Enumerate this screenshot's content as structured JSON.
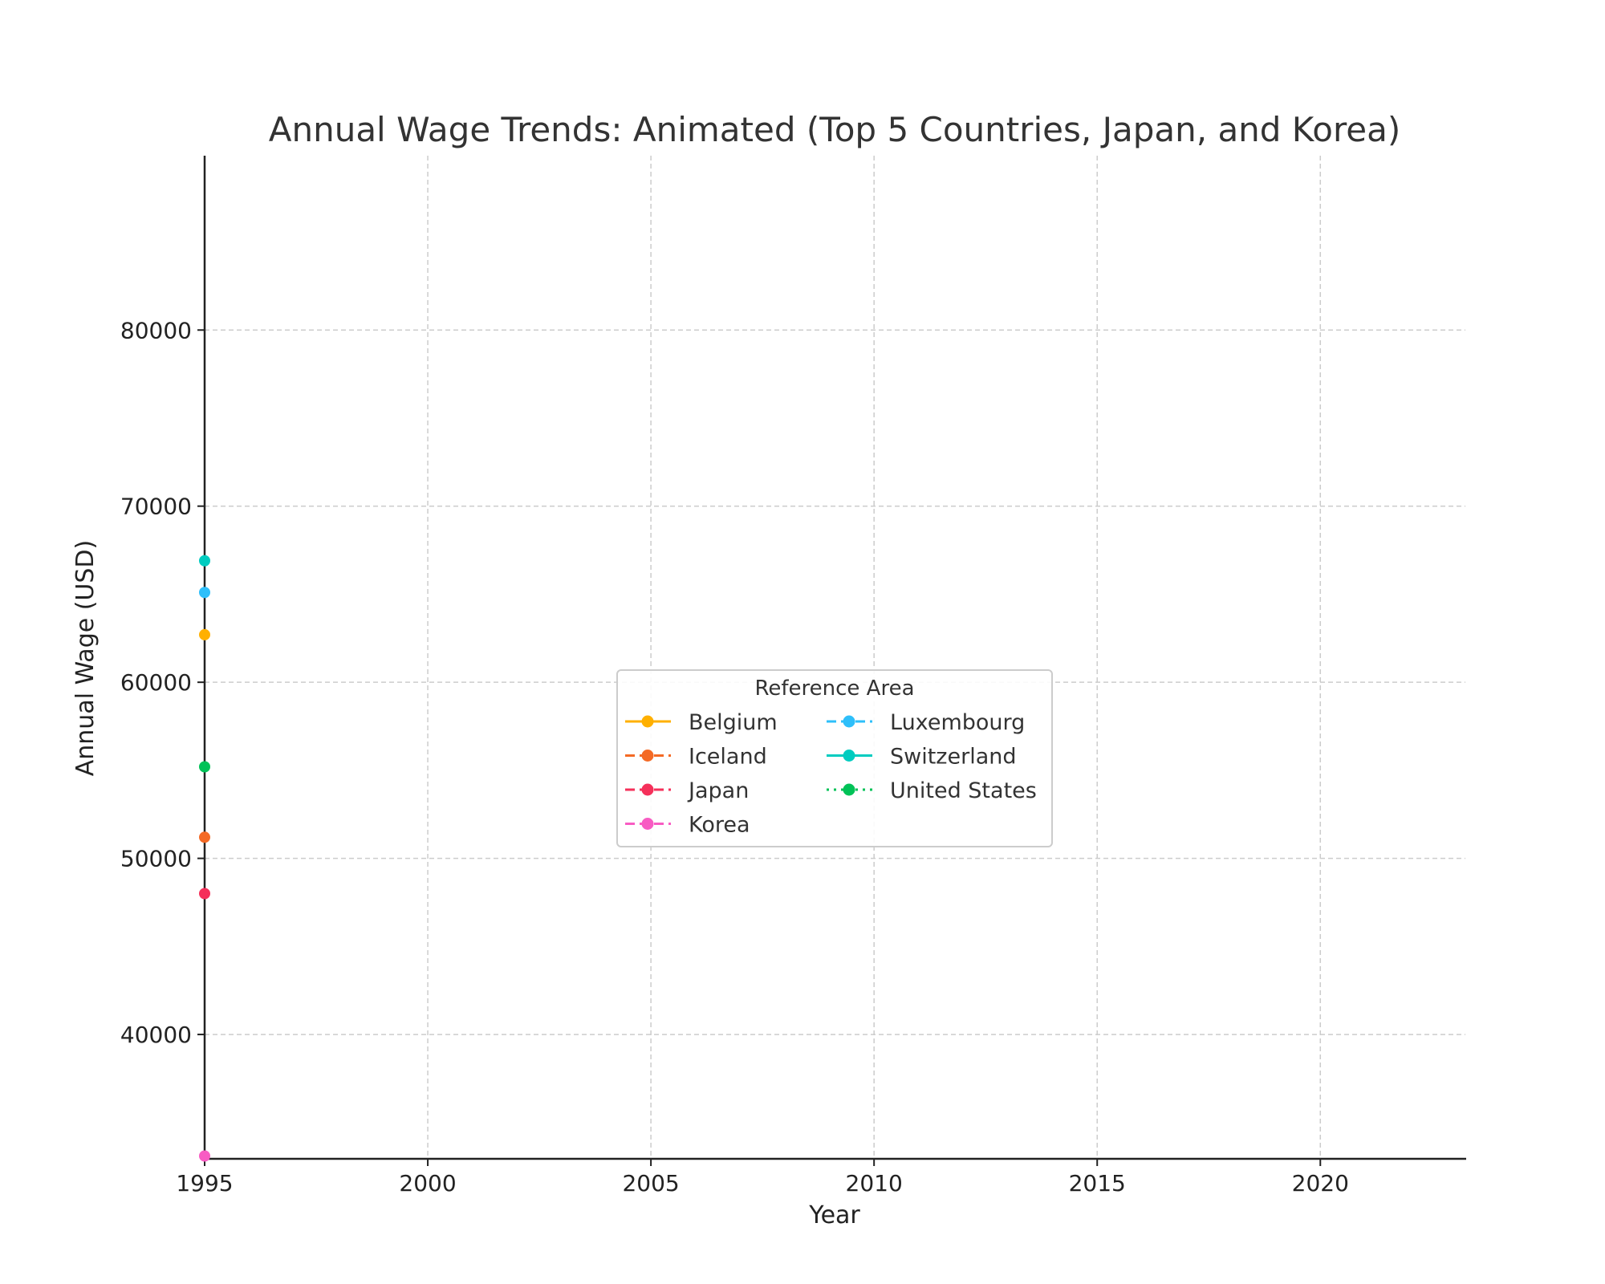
{
  "chart_data": {
    "type": "line",
    "title": "Annual Wage Trends: Animated (Top 5 Countries, Japan, and Korea)",
    "xlabel": "Year",
    "ylabel": "Annual Wage (USD)",
    "xlim": [
      1995,
      2023.25
    ],
    "ylim": [
      32940,
      89900
    ],
    "xticks": [
      1995,
      2000,
      2005,
      2010,
      2015,
      2020
    ],
    "yticks": [
      40000,
      50000,
      60000,
      70000,
      80000
    ],
    "grid": true,
    "legend": {
      "title": "Reference Area",
      "placement": "center-right",
      "columns": 2
    },
    "series": [
      {
        "name": "Belgium",
        "color": "#FFB000",
        "dash": "solid",
        "x": [
          1995
        ],
        "y": [
          62700
        ]
      },
      {
        "name": "Iceland",
        "color": "#F46A25",
        "dash": "dashed",
        "x": [
          1995
        ],
        "y": [
          51200
        ]
      },
      {
        "name": "Japan",
        "color": "#F5305A",
        "dash": "dashed",
        "x": [
          1995
        ],
        "y": [
          48000
        ]
      },
      {
        "name": "Korea",
        "color": "#F85CC3",
        "dash": "dashed",
        "x": [
          1995
        ],
        "y": [
          33100
        ]
      },
      {
        "name": "Luxembourg",
        "color": "#2EBFFA",
        "dash": "dashed",
        "x": [
          1995
        ],
        "y": [
          65100
        ]
      },
      {
        "name": "Switzerland",
        "color": "#00CCC0",
        "dash": "solid",
        "x": [
          1995
        ],
        "y": [
          66900
        ]
      },
      {
        "name": "United States",
        "color": "#00C257",
        "dash": "dotted",
        "x": [
          1995
        ],
        "y": [
          55200
        ]
      }
    ]
  }
}
